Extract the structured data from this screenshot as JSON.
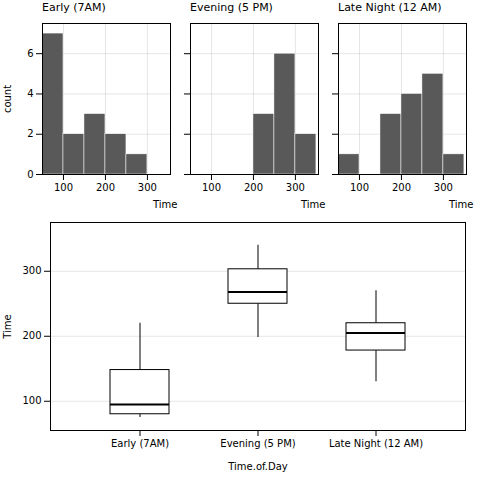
{
  "chart_data": [
    {
      "type": "histogram",
      "title": "Early (7AM)",
      "bins": [
        50,
        100,
        150,
        200,
        250,
        300,
        350
      ],
      "values": [
        7,
        2,
        3,
        2,
        1,
        0
      ],
      "color": "#595959",
      "xlim": [
        50,
        355
      ],
      "xticks": [
        100,
        200,
        300
      ],
      "ylim": [
        0,
        7.5
      ],
      "yticks": [
        0,
        2,
        4,
        6
      ],
      "xlabel": "Time",
      "ylabel": "count",
      "grid": true
    },
    {
      "type": "histogram",
      "title": "Evening (5 PM)",
      "bins": [
        50,
        100,
        150,
        200,
        250,
        300,
        350
      ],
      "values": [
        0,
        0,
        0,
        3,
        6,
        2
      ],
      "color": "#595959",
      "xlim": [
        50,
        355
      ],
      "xticks": [
        100,
        200,
        300
      ],
      "ylim": [
        0,
        7.5
      ],
      "yticks": [
        0,
        2,
        4,
        6
      ],
      "xlabel": "Time",
      "grid": true,
      "tick_labels": "x"
    },
    {
      "type": "histogram",
      "title": "Late Night (12 AM)",
      "bins": [
        50,
        100,
        150,
        200,
        250,
        300,
        350
      ],
      "values": [
        1,
        0,
        3,
        4,
        5,
        1
      ],
      "color": "#595959",
      "xlim": [
        50,
        355
      ],
      "xticks": [
        100,
        200,
        300
      ],
      "ylim": [
        0,
        7.5
      ],
      "yticks": [
        0,
        2,
        4,
        6
      ],
      "xlabel": "Time",
      "grid": true,
      "tick_labels": "x"
    },
    {
      "type": "box",
      "categories": [
        "Early (7AM)",
        "Evening (5 PM)",
        "Late Night (12 AM)"
      ],
      "values": [
        {
          "whislo": 75,
          "q1": 80,
          "med": 95,
          "q3": 148,
          "whishi": 220
        },
        {
          "whislo": 198,
          "q1": 250,
          "med": 268,
          "q3": 303,
          "whishi": 340
        },
        {
          "whislo": 130,
          "q1": 178,
          "med": 205,
          "q3": 220,
          "whishi": 270
        }
      ],
      "ylim": [
        55,
        375
      ],
      "yticks": [
        100,
        200,
        300
      ],
      "xlabel": "Time.of.Day",
      "ylabel": "Time",
      "grid": "y"
    }
  ]
}
